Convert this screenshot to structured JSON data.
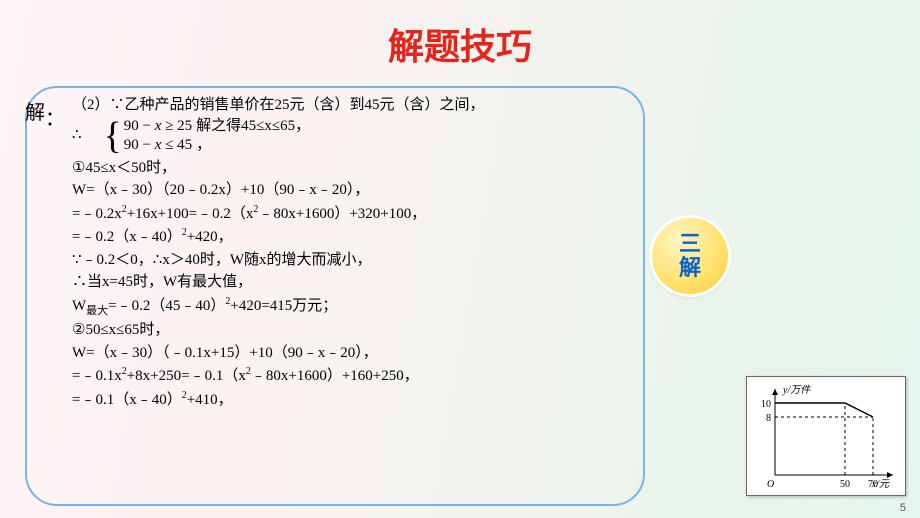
{
  "title": "解题技巧",
  "solve_label": "解",
  "solve_colon": "：",
  "lines": {
    "l1": "（2）∵乙种产品的销售单价在25元（含）到45元（含）之间，",
    "therefore_sym": "∴",
    "ineq_top_left": "90",
    "ineq_top_op": " − ",
    "ineq_top_x": "x",
    "ineq_top_ge": " ≥ 25",
    "ineq_bot_left": "90",
    "ineq_bot_op": " − ",
    "ineq_bot_x": "x",
    "ineq_bot_le": " ≤ 45",
    "brace_right_top": "解之得45≤x≤65，",
    "brace_right_bot": "，",
    "l4": "①45≤x＜50时，",
    "l5": "W=（x﹣30）（20﹣0.2x）+10（90﹣x﹣20），",
    "l6_a": "=﹣0.2x",
    "l6_b": "+16x+100=﹣0.2（x",
    "l6_c": "﹣80x+1600）+320+100，",
    "l7_a": "=﹣0.2（x﹣40）",
    "l7_b": "+420，",
    "l8": "∵﹣0.2＜0，∴x＞40时，W随x的增大而减小，",
    "l9": "∴当x=45时，W有最大值，",
    "l10_a": "W",
    "l10_sub": "最大",
    "l10_b": "=﹣0.2（45﹣40）",
    "l10_c": "+420=415万元；",
    "l11": "②50≤x≤65时，",
    "l12": "W=（x﹣30）（﹣0.1x+15）+10（90﹣x﹣20），",
    "l13_a": "=﹣0.1x",
    "l13_b": "+8x+250=﹣0.1（x",
    "l13_c": "﹣80x+1600）+160+250，",
    "l14_a": "=﹣0.1（x﹣40）",
    "l14_b": "+410，"
  },
  "badge": {
    "line1": "三",
    "line2": "解"
  },
  "chart": {
    "type": "line",
    "width": 160,
    "height": 120,
    "plot": {
      "ox": 28,
      "oy": 98,
      "w": 118,
      "h": 86
    },
    "y_axis_label": "y/万件",
    "x_axis_label": "x/元",
    "origin_label": "O",
    "y_ticks": [
      {
        "v": 10,
        "py": 26,
        "label": "10"
      },
      {
        "v": 8,
        "py": 40,
        "label": "8"
      }
    ],
    "x_ticks": [
      {
        "v": 50,
        "px": 98,
        "label": "50"
      },
      {
        "v": 70,
        "px": 126,
        "label": "70"
      }
    ],
    "series": {
      "points": [
        {
          "px": 28,
          "py": 26
        },
        {
          "px": 98,
          "py": 26
        },
        {
          "px": 126,
          "py": 40
        }
      ],
      "color": "#000000",
      "width": 1.4
    },
    "dash": "3,3",
    "colors": {
      "bg": "#ffffff",
      "axis": "#000000",
      "dashed": "#000000",
      "border": "#6a6a6a"
    }
  },
  "pagefoot": "5"
}
